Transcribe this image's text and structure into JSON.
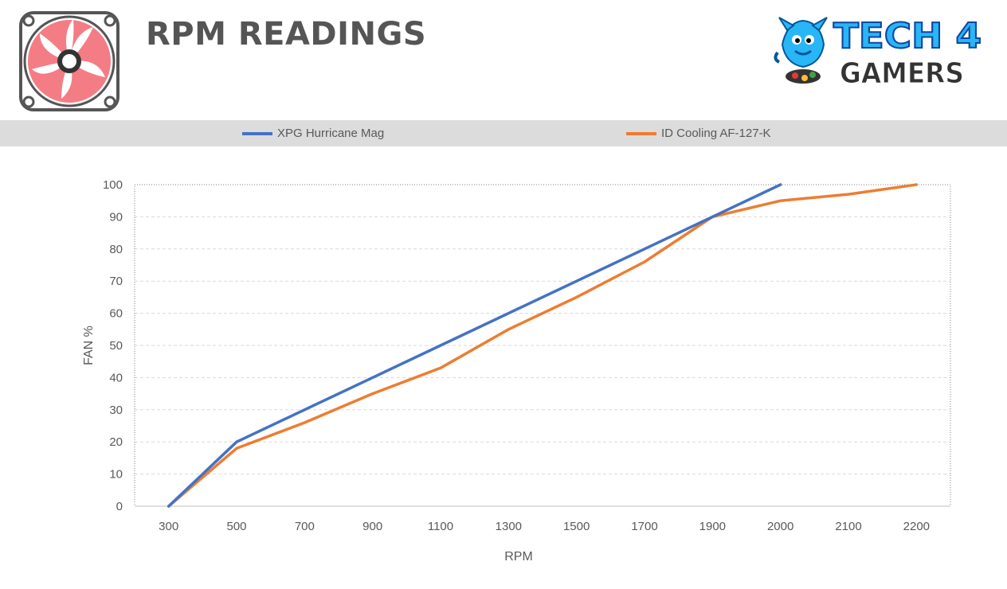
{
  "header": {
    "title": "RPM READINGS",
    "fan_icon": "fan-icon",
    "brand_icon": "tech4gamers-logo",
    "brand_line1": "TECH 4",
    "brand_line2": "GAMERS"
  },
  "colors": {
    "series_1": "#4472C4",
    "series_2": "#ED7D31",
    "fan_blades": "#F47C85",
    "grid": "#d9d9d9"
  },
  "chart_data": {
    "type": "line",
    "xlabel": "RPM",
    "ylabel": "FAN %",
    "ylim": [
      0,
      100
    ],
    "yticks": [
      0,
      10,
      20,
      30,
      40,
      50,
      60,
      70,
      80,
      90,
      100
    ],
    "categories": [
      "300",
      "500",
      "700",
      "900",
      "1100",
      "1300",
      "1500",
      "1700",
      "1900",
      "2000",
      "2100",
      "2200"
    ],
    "legend_position": "top",
    "grid": true,
    "series": [
      {
        "name": "XPG Hurricane Mag",
        "values": [
          0,
          20,
          30,
          40,
          50,
          60,
          70,
          80,
          90,
          100,
          null,
          null
        ]
      },
      {
        "name": "ID Cooling AF-127-K",
        "values": [
          0,
          18,
          26,
          35,
          43,
          55,
          65,
          76,
          90,
          95,
          97,
          100
        ]
      }
    ]
  }
}
